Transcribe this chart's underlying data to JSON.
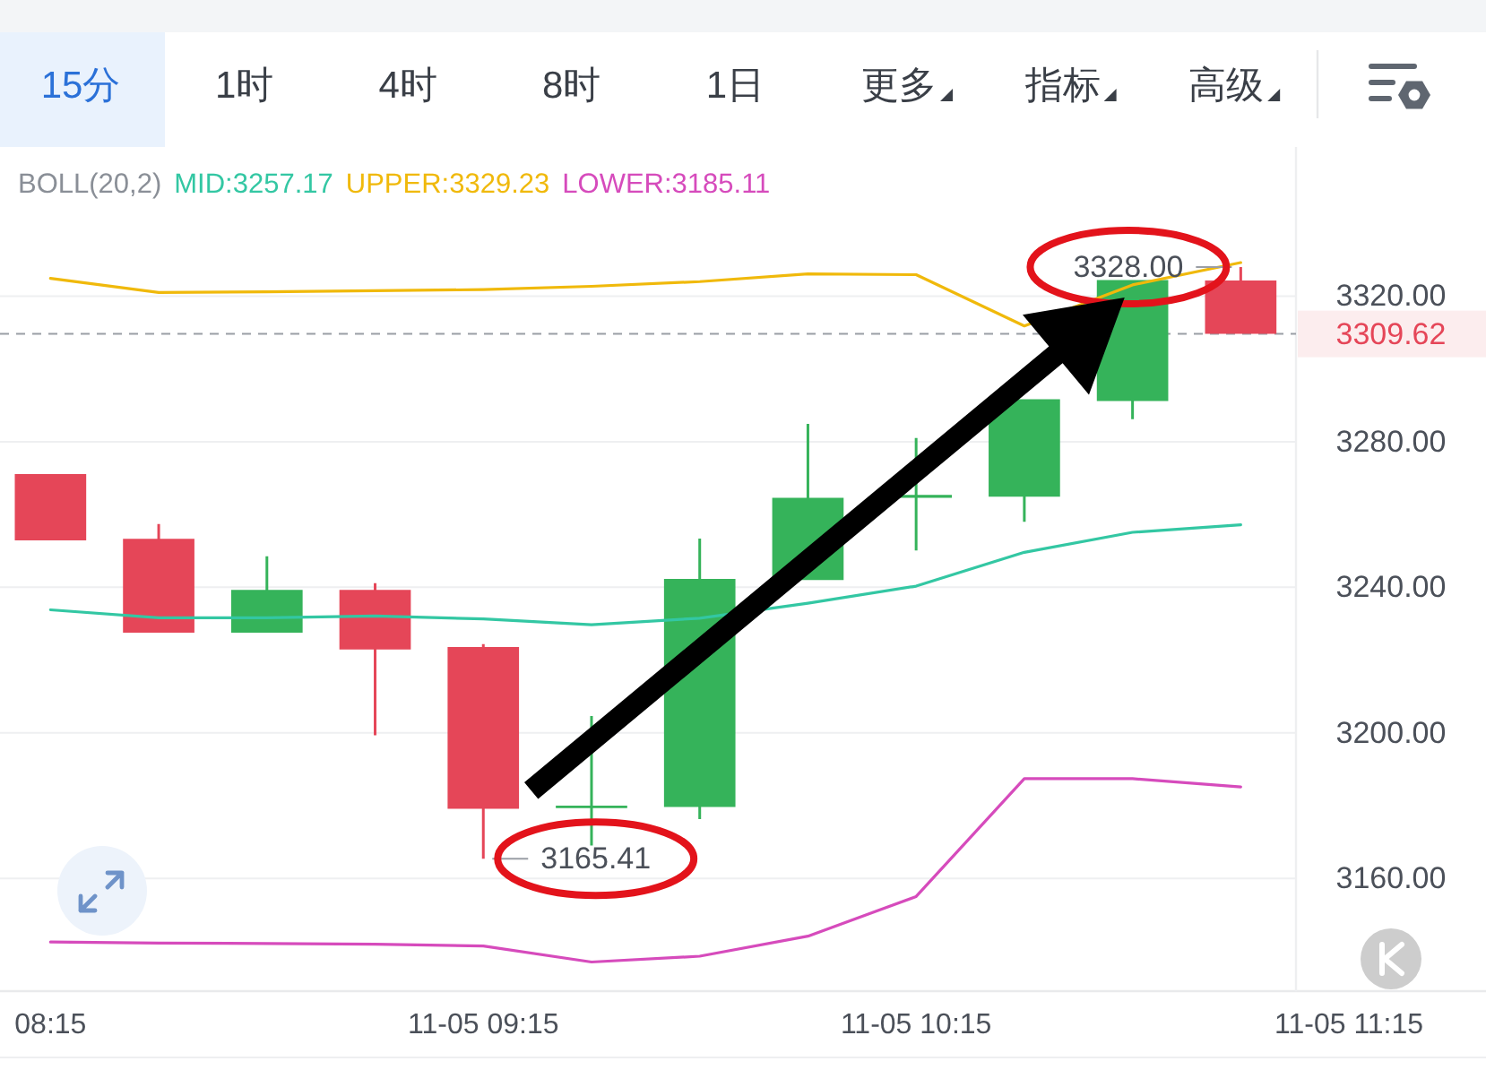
{
  "chart_data": {
    "type": "candlestick",
    "legend_title": "BOLL(20,2)",
    "x": [
      "--11-05T08:15",
      "--11-05T08:30",
      "--11-05T08:45",
      "--11-05T09:00",
      "--11-05T09:15",
      "--11-05T09:30",
      "--11-05T09:45",
      "--11-05T10:00",
      "--11-05T10:15",
      "--11-05T10:30",
      "--11-05T10:45",
      "--11-05T11:00"
    ],
    "ohlc": [
      [
        3271.1,
        3271.1,
        3252.9,
        3252.9
      ],
      [
        3253.3,
        3257.4,
        3227.5,
        3227.5
      ],
      [
        3227.5,
        3248.5,
        3227.5,
        3239.3
      ],
      [
        3239.3,
        3241.1,
        3199.3,
        3222.9
      ],
      [
        3223.6,
        3224.4,
        3165.41,
        3179.1
      ],
      [
        3179.3,
        3204.6,
        3169.0,
        3180.0
      ],
      [
        3179.6,
        3253.4,
        3176.3,
        3242.3
      ],
      [
        3242.0,
        3284.9,
        3242.0,
        3264.6
      ],
      [
        3264.6,
        3281.0,
        3250.1,
        3265.4
      ],
      [
        3264.9,
        3291.7,
        3258.0,
        3291.7
      ],
      [
        3291.2,
        3324.4,
        3286.2,
        3324.4
      ],
      [
        3324.3,
        3328.0,
        3309.62,
        3309.62
      ]
    ],
    "colors": [
      "#e54658",
      "#e54658",
      "#35b35a",
      "#e54658",
      "#e54658",
      "#35b35a",
      "#35b35a",
      "#35b35a",
      "#35b35a",
      "#35b35a",
      "#35b35a",
      "#e54658"
    ],
    "series": [
      {
        "name": "MID:3257.17",
        "type": "line",
        "color": "#33c7a3",
        "values": [
          3233.8,
          3231.6,
          3231.6,
          3232.1,
          3231.3,
          3229.7,
          3231.5,
          3235.6,
          3240.3,
          3249.6,
          3255.1,
          3257.17
        ]
      },
      {
        "name": "UPPER:3329.23",
        "type": "line",
        "color": "#f0b90b",
        "values": [
          3324.9,
          3321.0,
          3321.2,
          3321.5,
          3321.8,
          3322.7,
          3324.0,
          3326.1,
          3325.9,
          3311.8,
          3323.1,
          3329.23
        ]
      },
      {
        "name": "LOWER:3185.11",
        "type": "line",
        "color": "#d64bbc",
        "values": [
          3142.5,
          3142.2,
          3142.1,
          3141.9,
          3141.4,
          3137.0,
          3138.6,
          3144.1,
          3155.0,
          3187.4,
          3187.4,
          3185.11
        ]
      }
    ],
    "xlim": [
      "--11-05T08:08",
      "--11-05T11:34"
    ],
    "xticks": [
      {
        "value": "--11-05T08:15",
        "label": "08:15"
      },
      {
        "value": "--11-05T09:15",
        "label": "11-05 09:15"
      },
      {
        "value": "--11-05T10:15",
        "label": "11-05 10:15"
      },
      {
        "value": "--11-05T11:15",
        "label": "11-05 11:15"
      }
    ],
    "ylim": [
      3129,
      3361
    ],
    "yticks": [
      {
        "value": 3160,
        "label": "3160.00"
      },
      {
        "value": 3200,
        "label": "3200.00"
      },
      {
        "value": 3240,
        "label": "3240.00"
      },
      {
        "value": 3280,
        "label": "3280.00"
      },
      {
        "value": 3320,
        "label": "3320.00"
      }
    ],
    "grid": "y",
    "legend": "top left",
    "ref_lines": [
      {
        "axis": "y",
        "value": 3309.62,
        "label": "3309.62",
        "color": "#9a9ea5",
        "line_style": "dashed"
      }
    ],
    "annotations": [
      "15分",
      "1时",
      "4时",
      "8时",
      "1日",
      "更多",
      "指标",
      "高级",
      {
        "text": "3165.41",
        "x": "--11-05T09:15",
        "y": 3165.41
      },
      {
        "text": "3328.00",
        "x": "--11-05T11:00",
        "y": 3328.0
      }
    ]
  }
}
